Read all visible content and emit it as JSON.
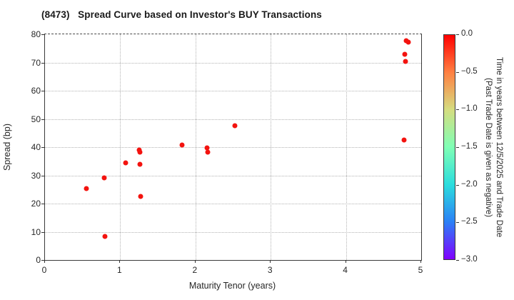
{
  "chart_data": {
    "type": "scatter",
    "title": "(8473)   Spread Curve based on Investor's BUY Transactions",
    "xlabel": "Maturity Tenor (years)",
    "ylabel": "Spread (bp)",
    "xlim": [
      0,
      5
    ],
    "ylim": [
      0,
      80
    ],
    "x_ticks": [
      0,
      1,
      2,
      3,
      4,
      5
    ],
    "y_ticks": [
      0,
      10,
      20,
      30,
      40,
      50,
      60,
      70,
      80
    ],
    "grid": "dotted",
    "legend": "none",
    "marker_color": "#f3130f",
    "points": [
      {
        "x": 0.55,
        "y": 25.4,
        "c": 0.0
      },
      {
        "x": 0.79,
        "y": 29.2,
        "c": 0.0
      },
      {
        "x": 0.8,
        "y": 8.3,
        "c": 0.0
      },
      {
        "x": 1.07,
        "y": 34.5,
        "c": 0.0
      },
      {
        "x": 1.255,
        "y": 38.9,
        "c": 0.0
      },
      {
        "x": 1.26,
        "y": 38.3,
        "c": 0.0
      },
      {
        "x": 1.26,
        "y": 34.0,
        "c": 0.0
      },
      {
        "x": 1.27,
        "y": 22.6,
        "c": 0.0
      },
      {
        "x": 1.82,
        "y": 40.7,
        "c": 0.0
      },
      {
        "x": 2.15,
        "y": 39.8,
        "c": 0.0
      },
      {
        "x": 2.16,
        "y": 38.3,
        "c": 0.0
      },
      {
        "x": 2.52,
        "y": 47.6,
        "c": 0.0
      },
      {
        "x": 4.8,
        "y": 77.8,
        "c": 0.0
      },
      {
        "x": 4.83,
        "y": 77.2,
        "c": 0.0
      },
      {
        "x": 4.78,
        "y": 73.0,
        "c": 0.0
      },
      {
        "x": 4.79,
        "y": 70.4,
        "c": 0.0
      },
      {
        "x": 4.77,
        "y": 42.5,
        "c": 0.0
      }
    ],
    "colorbar": {
      "label_line1": "Time in years between 12/5/2025 and Trade Date",
      "label_line2": "(Past Trade Date is given as negative)",
      "tick_labels": [
        "0.0",
        "−0.5",
        "−1.0",
        "−1.5",
        "−2.0",
        "−2.5",
        "−3.0"
      ],
      "tick_values": [
        0,
        -0.5,
        -1.0,
        -1.5,
        -2.0,
        -2.5,
        -3.0
      ],
      "range_top": 0.0,
      "range_bottom": -3.0,
      "gradient_top_to_bottom": [
        "#ff0000",
        "#ff8042",
        "#d5dd80",
        "#80ffb5",
        "#2bdddd",
        "#2b80f6",
        "#8000ff"
      ]
    }
  }
}
